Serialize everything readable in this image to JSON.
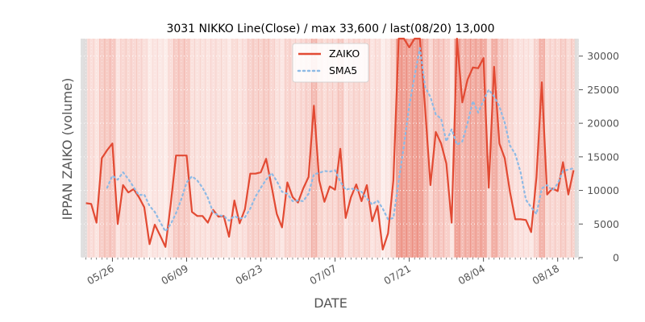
{
  "chart_data": {
    "type": "line",
    "title": "3031 NIKKO Line(Close) / max 33,600 / last(08/20) 13,000",
    "xlabel": "DATE",
    "ylabel": "IPPAN ZAIKO (volume)",
    "ylim": [
      0,
      32600
    ],
    "y_ticks": [
      "0",
      "5000",
      "10000",
      "15000",
      "20000",
      "25000",
      "30000"
    ],
    "x_ticks": [
      "05/26",
      "06/09",
      "06/23",
      "07/07",
      "07/21",
      "08/04",
      "08/18"
    ],
    "x_tick_days": [
      6,
      20,
      34,
      48,
      62,
      76,
      90
    ],
    "day_range": [
      0,
      94
    ],
    "legend_position": "top-center",
    "grid": true,
    "series": [
      {
        "name": "ZAIKO",
        "style": "solid",
        "color": "#E24A33",
        "x_days": [
          1,
          2,
          3,
          4,
          5,
          6,
          7,
          8,
          9,
          10,
          11,
          12,
          13,
          14,
          15,
          16,
          17,
          18,
          19,
          20,
          21,
          22,
          23,
          24,
          25,
          26,
          27,
          28,
          29,
          30,
          31,
          32,
          33,
          34,
          35,
          36,
          37,
          38,
          39,
          40,
          41,
          42,
          43,
          44,
          45,
          46,
          47,
          48,
          49,
          50,
          51,
          52,
          53,
          54,
          55,
          56,
          57,
          58,
          59,
          60,
          61,
          62,
          63,
          64,
          65,
          66,
          67,
          68,
          69,
          70,
          71,
          72,
          73,
          74,
          75,
          76,
          77,
          78,
          79,
          80,
          81,
          82,
          83,
          84,
          85,
          86,
          87,
          88,
          89,
          90,
          91,
          92,
          93
        ],
        "values": [
          8100,
          8000,
          5200,
          14800,
          16000,
          17000,
          5000,
          10800,
          9700,
          10200,
          9000,
          7500,
          2000,
          4900,
          3300,
          1600,
          8000,
          15200,
          15200,
          15200,
          6800,
          6200,
          6200,
          5200,
          7100,
          6100,
          6200,
          3100,
          8500,
          5100,
          7200,
          12500,
          12500,
          12700,
          14700,
          10700,
          6500,
          4500,
          11200,
          9000,
          8200,
          10300,
          12000,
          22600,
          11500,
          8300,
          10600,
          10100,
          16200,
          5900,
          9000,
          10900,
          8400,
          10800,
          5400,
          7700,
          1200,
          3600,
          11500,
          33600,
          33600,
          31300,
          33600,
          33600,
          22200,
          10800,
          18700,
          17000,
          14000,
          5200,
          33600,
          23100,
          26500,
          28300,
          28200,
          29700,
          10400,
          28400,
          17000,
          14800,
          9800,
          5700,
          5700,
          5600,
          3800,
          12000,
          26100,
          9400,
          10300,
          9900,
          14200,
          9400,
          13000
        ]
      },
      {
        "name": "SMA5",
        "style": "dotted",
        "color": "#8EBAE5",
        "x_days": [
          5,
          6,
          7,
          8,
          9,
          10,
          11,
          12,
          13,
          14,
          15,
          16,
          17,
          18,
          19,
          20,
          21,
          22,
          23,
          24,
          25,
          26,
          27,
          28,
          29,
          30,
          31,
          32,
          33,
          34,
          35,
          36,
          37,
          38,
          39,
          40,
          41,
          42,
          43,
          44,
          45,
          46,
          47,
          48,
          49,
          50,
          51,
          52,
          53,
          54,
          55,
          56,
          57,
          58,
          59,
          60,
          61,
          62,
          63,
          64,
          65,
          66,
          67,
          68,
          69,
          70,
          71,
          72,
          73,
          74,
          75,
          76,
          77,
          78,
          79,
          80,
          81,
          82,
          83,
          84,
          85,
          86,
          87,
          88,
          89,
          90,
          91,
          92,
          93
        ],
        "values": [
          10400,
          12200,
          11600,
          12700,
          11700,
          10500,
          9300,
          9400,
          7700,
          6800,
          5300,
          3900,
          5000,
          6600,
          8700,
          11200,
          12100,
          11500,
          10400,
          8900,
          6700,
          6300,
          6200,
          5500,
          6200,
          5800,
          6000,
          7300,
          9100,
          10400,
          11600,
          12600,
          11400,
          9800,
          9500,
          8400,
          8500,
          8400,
          9500,
          12400,
          12600,
          12900,
          12800,
          13000,
          11300,
          10100,
          10300,
          10100,
          9800,
          8800,
          7900,
          8500,
          7300,
          5700,
          5900,
          11400,
          16700,
          22600,
          27000,
          31200,
          25400,
          23900,
          21300,
          20700,
          17300,
          19100,
          16800,
          17300,
          20000,
          23300,
          21600,
          23400,
          25000,
          24000,
          22500,
          20100,
          16700,
          15400,
          12700,
          8600,
          7500,
          6500,
          10300,
          10800,
          10000,
          11000,
          12900,
          13100,
          13300
        ]
      }
    ]
  },
  "legend": {
    "items": [
      {
        "label": "ZAIKO"
      },
      {
        "label": "SMA5"
      }
    ]
  },
  "colors": {
    "zaiko_line": "#E24A33",
    "sma5_line": "#8EBAE5",
    "plot_band_base": "#E24A33",
    "axis_text": "#555555"
  }
}
